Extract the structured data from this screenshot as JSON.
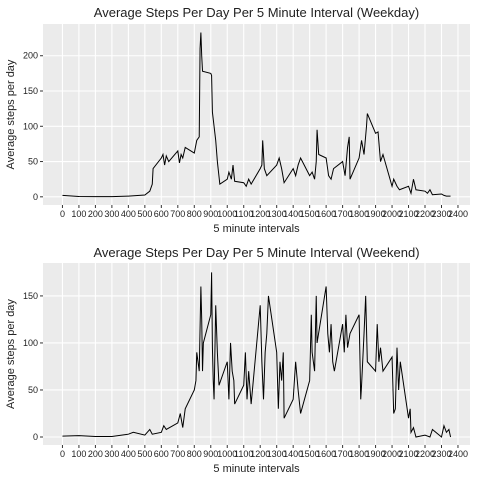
{
  "chart_data": [
    {
      "type": "line",
      "title": "Average Steps Per Day Per 5 Minute Interval (Weekday)",
      "x_label": "5 minute intervals",
      "y_label": "Average steps per day",
      "color": "#000000",
      "grid": true,
      "x": [
        0,
        100,
        200,
        300,
        400,
        500,
        530,
        545,
        550,
        600,
        610,
        620,
        630,
        645,
        700,
        710,
        720,
        730,
        745,
        800,
        815,
        830,
        835,
        840,
        845,
        850,
        900,
        905,
        910,
        930,
        940,
        955,
        1000,
        1010,
        1025,
        1035,
        1045,
        1100,
        1115,
        1130,
        1145,
        1200,
        1210,
        1215,
        1225,
        1240,
        1300,
        1315,
        1330,
        1345,
        1400,
        1415,
        1430,
        1445,
        1500,
        1515,
        1530,
        1540,
        1545,
        1555,
        1600,
        1615,
        1630,
        1645,
        1700,
        1715,
        1730,
        1740,
        1745,
        1800,
        1815,
        1830,
        1845,
        1850,
        1900,
        1915,
        1930,
        1945,
        2000,
        2010,
        2030,
        2045,
        2100,
        2115,
        2130,
        2145,
        2200,
        2215,
        2230,
        2245,
        2300,
        2315,
        2330,
        2355
      ],
      "values": [
        2,
        0.5,
        0.3,
        0.2,
        1,
        2.5,
        8,
        18,
        40,
        55,
        60,
        45,
        58,
        50,
        65,
        48,
        60,
        55,
        70,
        62,
        80,
        85,
        210,
        233,
        200,
        178,
        175,
        172,
        120,
        80,
        50,
        18,
        25,
        35,
        25,
        45,
        22,
        20,
        15,
        25,
        18,
        40,
        45,
        80,
        40,
        30,
        45,
        55,
        40,
        20,
        40,
        30,
        45,
        55,
        30,
        35,
        25,
        50,
        95,
        60,
        55,
        30,
        25,
        40,
        50,
        30,
        70,
        85,
        25,
        55,
        80,
        60,
        100,
        118,
        90,
        92,
        50,
        60,
        15,
        25,
        15,
        10,
        15,
        5,
        25,
        10,
        8,
        5,
        10,
        3,
        4,
        2,
        1,
        1
      ],
      "xlim": [
        -118,
        2473
      ],
      "xticks": [
        0,
        100,
        200,
        300,
        400,
        500,
        600,
        700,
        800,
        900,
        1000,
        1100,
        1200,
        1300,
        1400,
        1500,
        1600,
        1700,
        1800,
        1900,
        2000,
        2100,
        2200,
        2300,
        2400
      ],
      "ylim": [
        -11.6,
        245
      ],
      "yticks": [
        0,
        50,
        100,
        150,
        200
      ]
    },
    {
      "type": "line",
      "title": "Average Steps Per Day Per 5 Minute Interval (Weekend)",
      "x_label": "5 minute intervals",
      "y_label": "Average steps per day",
      "color": "#000000",
      "grid": true,
      "x": [
        0,
        100,
        200,
        300,
        400,
        430,
        500,
        530,
        545,
        600,
        615,
        630,
        700,
        715,
        730,
        745,
        800,
        810,
        815,
        830,
        840,
        845,
        850,
        855,
        900,
        905,
        910,
        915,
        920,
        930,
        940,
        950,
        1000,
        1010,
        1020,
        1030,
        1040,
        1045,
        1100,
        1110,
        1120,
        1130,
        1145,
        1200,
        1210,
        1220,
        1230,
        1240,
        1250,
        1300,
        1310,
        1320,
        1330,
        1340,
        1345,
        1400,
        1415,
        1430,
        1445,
        1500,
        1510,
        1515,
        1530,
        1540,
        1545,
        1600,
        1610,
        1620,
        1630,
        1640,
        1650,
        1700,
        1710,
        1720,
        1730,
        1745,
        1800,
        1810,
        1815,
        1830,
        1840,
        1850,
        1900,
        1910,
        1920,
        1930,
        1945,
        2000,
        2010,
        2020,
        2030,
        2040,
        2050,
        2100,
        2110,
        2115,
        2130,
        2145,
        2200,
        2230,
        2245,
        2300,
        2315,
        2330,
        2345,
        2355
      ],
      "values": [
        1,
        1.5,
        0.5,
        0.5,
        3,
        5,
        2,
        8,
        3,
        5,
        12,
        8,
        15,
        25,
        10,
        30,
        50,
        60,
        90,
        70,
        160,
        125,
        70,
        100,
        130,
        175,
        95,
        60,
        40,
        140,
        90,
        55,
        80,
        40,
        100,
        70,
        60,
        35,
        55,
        90,
        40,
        70,
        35,
        140,
        80,
        40,
        90,
        110,
        150,
        90,
        30,
        80,
        60,
        90,
        20,
        40,
        80,
        50,
        25,
        60,
        130,
        90,
        70,
        150,
        100,
        160,
        110,
        90,
        120,
        80,
        70,
        120,
        90,
        130,
        95,
        110,
        130,
        40,
        55,
        110,
        150,
        80,
        70,
        120,
        80,
        95,
        70,
        85,
        25,
        30,
        95,
        50,
        80,
        20,
        30,
        5,
        10,
        0,
        2,
        0,
        8,
        0,
        12,
        5,
        8,
        0
      ],
      "xlim": [
        -118,
        2473
      ],
      "xticks": [
        0,
        100,
        200,
        300,
        400,
        500,
        600,
        700,
        800,
        900,
        1000,
        1100,
        1200,
        1300,
        1400,
        1500,
        1600,
        1700,
        1800,
        1900,
        2000,
        2100,
        2200,
        2300,
        2400
      ],
      "ylim": [
        -8.5,
        185
      ],
      "yticks": [
        0,
        50,
        100,
        150
      ]
    }
  ]
}
